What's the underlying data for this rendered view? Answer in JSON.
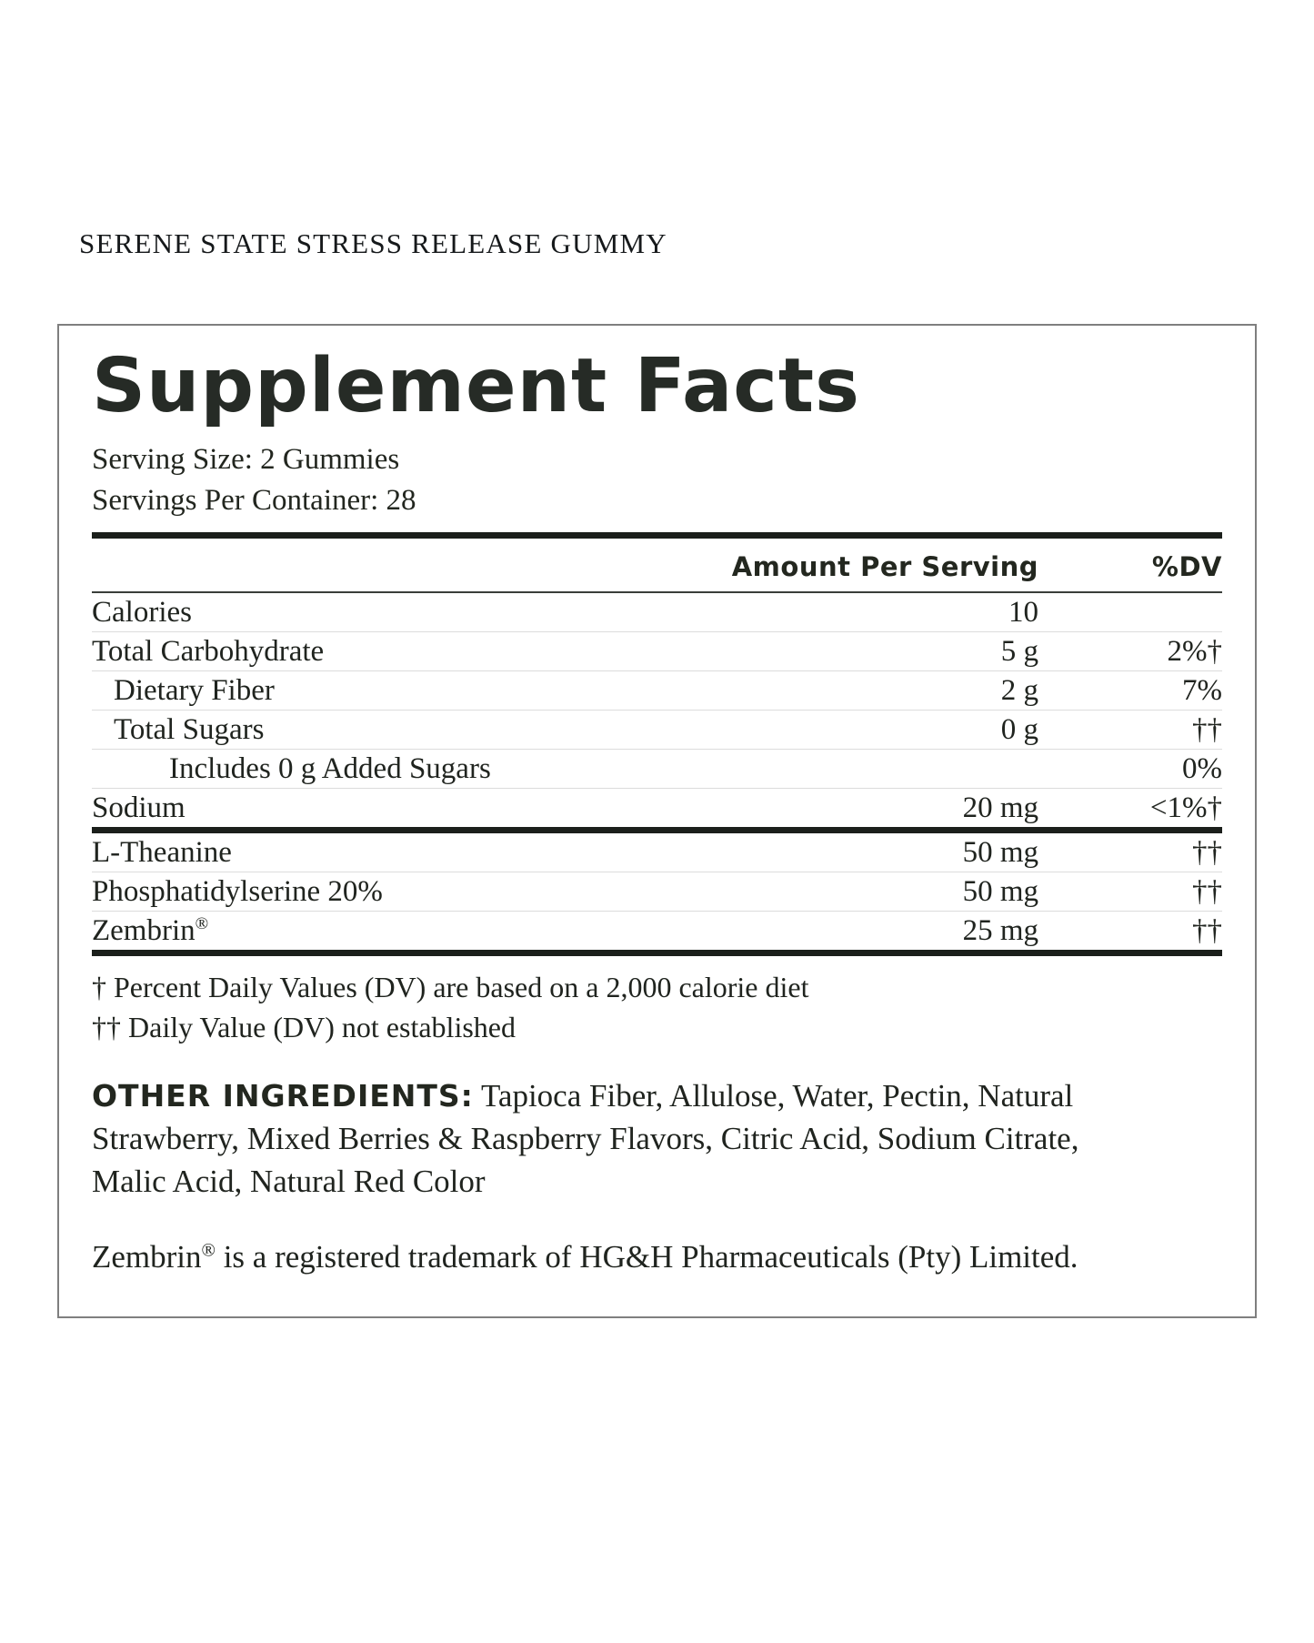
{
  "page": {
    "product_title": "SERENE STATE STRESS RELEASE GUMMY"
  },
  "panel": {
    "title": "Supplement Facts",
    "serving_size": "Serving Size: 2 Gummies",
    "servings_per_container": "Servings Per Container: 28",
    "columns": {
      "amount": "Amount Per Serving",
      "dv": "%DV"
    },
    "rows": [
      {
        "name": "Calories",
        "amount": "10",
        "dv": ""
      },
      {
        "name": "Total Carbohydrate",
        "amount": "5 g",
        "dv": "2%†"
      },
      {
        "name": "Dietary Fiber",
        "amount": "2 g",
        "dv": "7%"
      },
      {
        "name": "Total Sugars",
        "amount": "0 g",
        "dv": "††"
      },
      {
        "name": "Includes 0 g Added Sugars",
        "amount": "",
        "dv": "0%"
      },
      {
        "name": "Sodium",
        "amount": "20 mg",
        "dv": "<1%†"
      }
    ],
    "actives": [
      {
        "name": "L-Theanine",
        "reg": "",
        "amount": "50 mg",
        "dv": "††"
      },
      {
        "name": "Phosphatidylserine 20%",
        "reg": "",
        "amount": "50 mg",
        "dv": "††"
      },
      {
        "name": "Zembrin",
        "reg": "®",
        "amount": "25 mg",
        "dv": "††"
      }
    ],
    "footnotes": [
      "† Percent Daily Values (DV) are based on a 2,000 calorie diet",
      "†† Daily Value (DV) not established"
    ],
    "other_ingredients_label": "OTHER INGREDIENTS:",
    "other_ingredients_text": " Tapioca Fiber, Allulose, Water, Pectin, Natural Strawberry, Mixed Berries & Raspberry Flavors, Citric Acid, Sodium Citrate, Malic Acid, Natural Red Color",
    "trademark": {
      "brand": "Zembrin",
      "reg": "®",
      "text": " is a registered trademark of HG&H Pharmaceuticals (Pty) Limited."
    }
  },
  "colors": {
    "ink": "#20241f",
    "heading_ink": "#262b26",
    "thick_rule": "#1b1f1b",
    "header_rule": "#3a3e3a",
    "light_rule": "#dcdcdc",
    "panel_border": "#7f7f7f",
    "background": "#ffffff"
  }
}
